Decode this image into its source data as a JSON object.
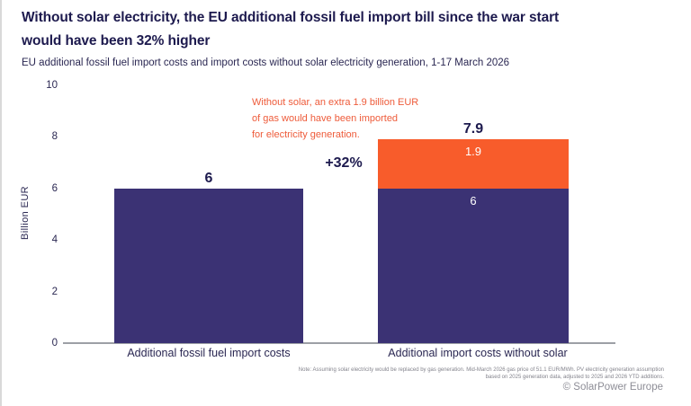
{
  "title_lines": [
    "Without solar electricity, the EU additional fossil fuel import bill since the war start",
    "would have been 32% higher"
  ],
  "subtitle": "EU additional fossil fuel import costs and import costs without solar electricity generation, 1-17 March 2026",
  "chart_data": {
    "type": "bar",
    "stacked": true,
    "title": "Without solar electricity, the EU additional fossil fuel import bill since the war start would have been 32% higher",
    "ylabel": "Billion EUR",
    "ylim": [
      0,
      10
    ],
    "yticks": [
      0,
      2,
      4,
      6,
      8,
      10
    ],
    "grid": false,
    "legend": "none",
    "categories": [
      "Additional fossil fuel import costs",
      "Additional import costs without solar"
    ],
    "bars": [
      {
        "category": "Additional fossil fuel import costs",
        "total_label": "6",
        "segments": [
          {
            "name": "fossil-fuel-import-costs",
            "value": 6,
            "color": "#3b3274",
            "label": ""
          }
        ]
      },
      {
        "category": "Additional import costs without solar",
        "total_label": "7.9",
        "segments": [
          {
            "name": "fossil-fuel-import-costs",
            "value": 6,
            "color": "#3b3274",
            "label": "6"
          },
          {
            "name": "extra-gas-for-electricity",
            "value": 1.9,
            "color": "#f85c2b",
            "label": "1.9"
          }
        ]
      }
    ],
    "delta_label": "+32%",
    "annotation_lines": [
      "Without solar, an extra 1.9 billion EUR",
      "of gas would have been imported",
      "for electricity generation."
    ]
  },
  "footer": {
    "note": "Note: Assuming solar electricity would be replaced by gas generation. Mid-March 2026 gas price of 51.1 EUR/MWh. PV electricity generation assumption based on 2025 generation data, adjusted to 2025 and 2026 YTD additions.",
    "copyright": "© SolarPower Europe"
  },
  "colors": {
    "navy": "#3b3274",
    "orange": "#f85c2b",
    "text_dark": "#1d1a4e",
    "annotation_orange": "#ee5b3a",
    "axis_gray": "#9da0a6",
    "note_gray": "#83838c"
  }
}
